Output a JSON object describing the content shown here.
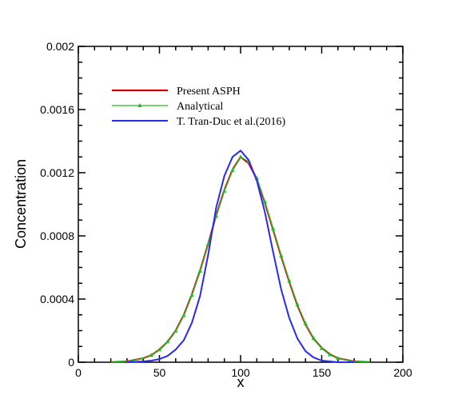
{
  "chart_data": {
    "type": "line",
    "xlabel": "x",
    "ylabel": "Concentration",
    "xlim": [
      0,
      200
    ],
    "ylim": [
      0,
      0.002
    ],
    "x_ticks": [
      "0",
      "50",
      "100",
      "150",
      "200"
    ],
    "y_ticks": [
      "0",
      "0.0004",
      "0.0008",
      "0.0012",
      "0.0016",
      "0.002"
    ],
    "legend_placement": "top-left",
    "grid": false,
    "series": [
      {
        "name": "Present ASPH",
        "color": "#d40000",
        "marker": "none",
        "x": [
          20,
          30,
          40,
          45,
          50,
          55,
          60,
          65,
          70,
          75,
          80,
          85,
          90,
          95,
          100,
          105,
          110,
          115,
          120,
          125,
          130,
          135,
          140,
          145,
          150,
          155,
          160,
          170,
          180
        ],
        "y": [
          0.0,
          5e-06,
          2.5e-05,
          4.5e-05,
          8e-05,
          0.00013,
          0.0002,
          0.0003,
          0.00043,
          0.00058,
          0.00075,
          0.00093,
          0.00109,
          0.00122,
          0.0013,
          0.00126,
          0.00116,
          0.00101,
          0.00084,
          0.00067,
          0.00051,
          0.00036,
          0.00024,
          0.00015,
          9e-05,
          5e-05,
          2.5e-05,
          5e-06,
          0.0
        ]
      },
      {
        "name": "Analytical",
        "color": "#22bb22",
        "marker": "triangle",
        "x": [
          20,
          30,
          40,
          45,
          50,
          55,
          60,
          65,
          70,
          75,
          80,
          85,
          90,
          95,
          100,
          105,
          110,
          115,
          120,
          125,
          130,
          135,
          140,
          145,
          150,
          155,
          160,
          170,
          180
        ],
        "y": [
          0.0,
          5e-06,
          2.4e-05,
          4.4e-05,
          7.9e-05,
          0.00013,
          0.000198,
          0.000296,
          0.000425,
          0.000578,
          0.000748,
          0.000925,
          0.001085,
          0.001215,
          0.0013,
          0.00127,
          0.001165,
          0.001015,
          0.000845,
          0.000675,
          0.000515,
          0.000365,
          0.000245,
          0.000152,
          8.8e-05,
          4.8e-05,
          2.4e-05,
          5e-06,
          0.0
        ]
      },
      {
        "name": "T. Tran-Duc et al.(2016)",
        "color": "#2a2aee",
        "marker": "none",
        "x": [
          30,
          40,
          45,
          50,
          55,
          60,
          65,
          70,
          75,
          80,
          85,
          90,
          95,
          100,
          105,
          110,
          115,
          120,
          125,
          130,
          135,
          140,
          145,
          150,
          160,
          170
        ],
        "y": [
          0.0,
          5e-06,
          1e-05,
          2e-05,
          4e-05,
          8e-05,
          0.00014,
          0.00025,
          0.00042,
          0.00068,
          0.00098,
          0.00118,
          0.0013,
          0.00134,
          0.00128,
          0.00115,
          0.00095,
          0.0007,
          0.00046,
          0.00028,
          0.00015,
          7e-05,
          3e-05,
          1e-05,
          0.0,
          0.0
        ]
      }
    ]
  }
}
